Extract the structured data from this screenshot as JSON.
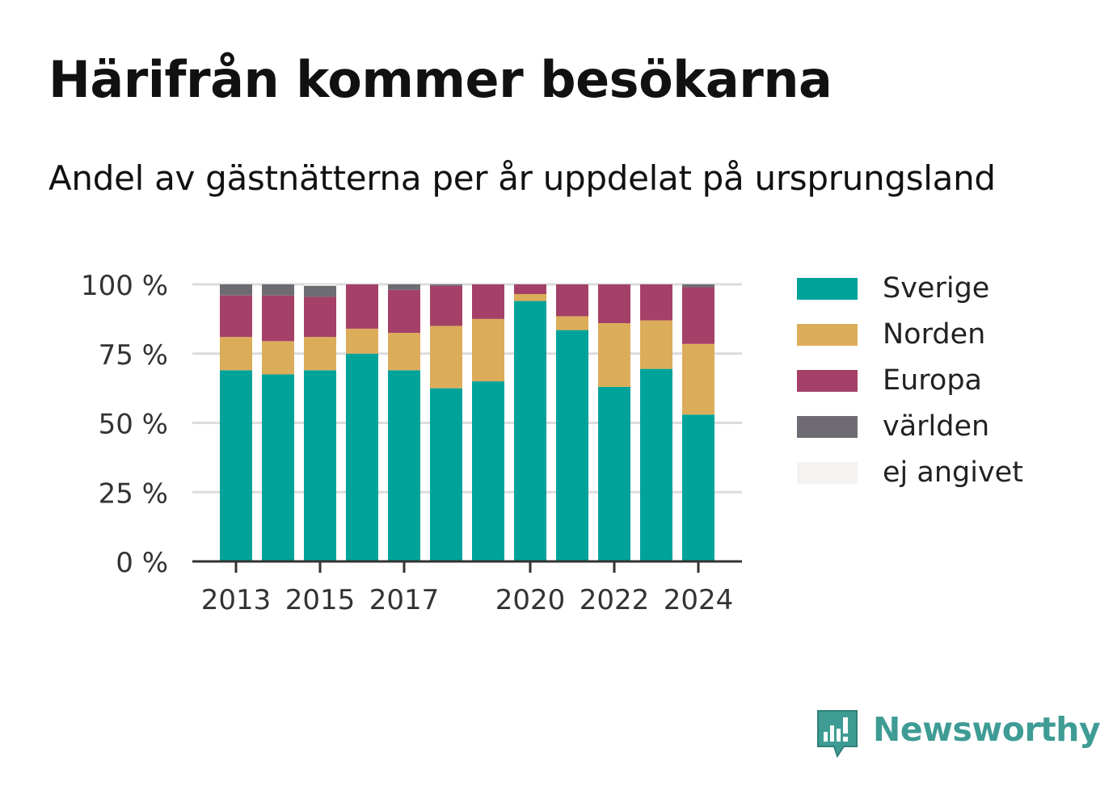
{
  "title": "Härifrån kommer besökarna",
  "subtitle": "Andel av gästnätterna per år uppdelat på ursprungsland",
  "brand": {
    "name": "Newsworthy",
    "icon": "newsworthy-logo-icon",
    "color": "#3f9c95"
  },
  "chart_data": {
    "type": "bar",
    "stacked": true,
    "categories": [
      "2013",
      "2014",
      "2015",
      "2016",
      "2017",
      "2018",
      "2019",
      "2020",
      "2021",
      "2022",
      "2023",
      "2024"
    ],
    "x_tick_labels": [
      "2013",
      "2015",
      "2017",
      "2020",
      "2022",
      "2024"
    ],
    "y_ticks": [
      "0 %",
      "25 %",
      "50 %",
      "75 %",
      "100 %"
    ],
    "ylim": [
      0,
      100
    ],
    "grid": "horizontal",
    "legend_position": "right",
    "series": [
      {
        "name": "Sverige",
        "color": "#00a39a",
        "values": [
          69,
          67.5,
          69,
          75,
          69,
          62.5,
          65,
          94,
          83.5,
          63,
          69.5,
          53
        ]
      },
      {
        "name": "Norden",
        "color": "#dbad5a",
        "values": [
          12,
          12,
          12,
          9,
          13.5,
          22.5,
          22.5,
          2.5,
          5,
          23,
          17.5,
          25.5
        ]
      },
      {
        "name": "Europa",
        "color": "#a54168",
        "values": [
          15,
          16.5,
          14.5,
          16,
          15.5,
          14.5,
          12.5,
          3.5,
          11.5,
          14,
          13,
          20.5
        ]
      },
      {
        "name": "världen",
        "color": "#6e6c72",
        "values": [
          4,
          4,
          4,
          0,
          2,
          0.5,
          0,
          0,
          0,
          0,
          0,
          1
        ]
      },
      {
        "name": "ej angivet",
        "color": "#f4f3f1",
        "values": [
          0,
          0,
          0.5,
          0,
          0,
          0,
          0,
          0,
          0,
          0,
          0,
          0
        ]
      }
    ]
  }
}
